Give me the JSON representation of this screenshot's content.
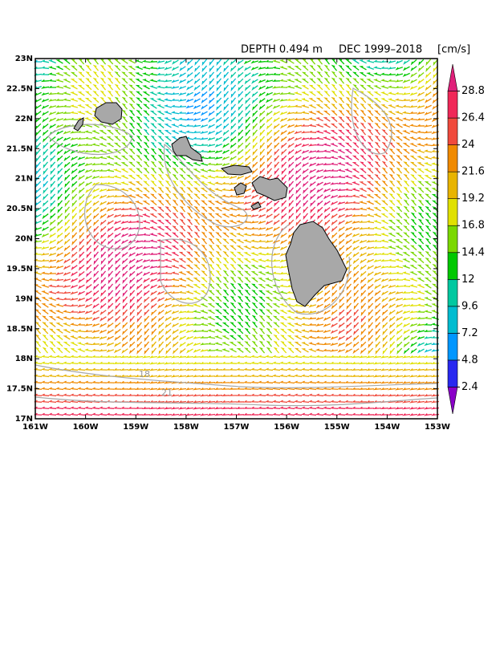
{
  "map": {
    "title": {
      "depth": "DEPTH  0.494 m",
      "period": "DEC  1999–2018",
      "units": "[cm/s]"
    },
    "lonlim": [
      -161,
      -153
    ],
    "latlim": [
      17,
      23
    ],
    "xticks": [
      {
        "value": -161,
        "label": "161W"
      },
      {
        "value": -160,
        "label": "160W"
      },
      {
        "value": -159,
        "label": "159W"
      },
      {
        "value": -158,
        "label": "158W"
      },
      {
        "value": -157,
        "label": "157W"
      },
      {
        "value": -156,
        "label": "156W"
      },
      {
        "value": -155,
        "label": "155W"
      },
      {
        "value": -154,
        "label": "154W"
      },
      {
        "value": -153,
        "label": "153W"
      }
    ],
    "yticks": [
      {
        "value": 17,
        "label": "17N"
      },
      {
        "value": 17.5,
        "label": "17.5N"
      },
      {
        "value": 18,
        "label": "18N"
      },
      {
        "value": 18.5,
        "label": "18.5N"
      },
      {
        "value": 19,
        "label": "19N"
      },
      {
        "value": 19.5,
        "label": "19.5N"
      },
      {
        "value": 20,
        "label": "20N"
      },
      {
        "value": 20.5,
        "label": "20.5N"
      },
      {
        "value": 21,
        "label": "21N"
      },
      {
        "value": 21.5,
        "label": "21.5N"
      },
      {
        "value": 22,
        "label": "22N"
      },
      {
        "value": 22.5,
        "label": "22.5N"
      },
      {
        "value": 23,
        "label": "23N"
      }
    ],
    "colorbar": {
      "lim": [
        0,
        31.2
      ],
      "ticks": [
        2.4,
        4.8,
        7.2,
        9.6,
        12,
        14.4,
        16.8,
        19.2,
        21.6,
        24,
        26.4,
        28.8
      ],
      "colors": [
        "#8a00c8",
        "#2828f0",
        "#0096ff",
        "#00bcd0",
        "#00c8a0",
        "#00c800",
        "#7ad800",
        "#e0e000",
        "#e8b400",
        "#f08a00",
        "#f04a3c",
        "#f02858",
        "#e0207a"
      ]
    },
    "contour_labels": [
      "18",
      "21"
    ]
  }
}
